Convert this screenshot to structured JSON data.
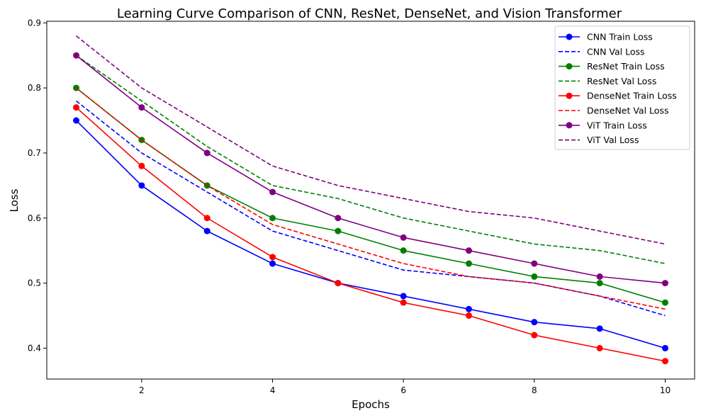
{
  "chart_data": {
    "type": "line",
    "title": "Learning Curve Comparison of CNN, ResNet, DenseNet, and Vision Transformer",
    "xlabel": "Epochs",
    "ylabel": "Loss",
    "x": [
      1,
      2,
      3,
      4,
      5,
      6,
      7,
      8,
      9,
      10
    ],
    "xlim": [
      0.55,
      10.45
    ],
    "ylim": [
      0.3525,
      0.9025
    ],
    "xticks": [
      2,
      4,
      6,
      8,
      10
    ],
    "xtick_labels": [
      "2",
      "4",
      "6",
      "8",
      "10"
    ],
    "yticks": [
      0.4,
      0.5,
      0.6,
      0.7,
      0.8,
      0.9
    ],
    "ytick_labels": [
      "0.4",
      "0.5",
      "0.6",
      "0.7",
      "0.8",
      "0.9"
    ],
    "grid": false,
    "legend_position": "top-right",
    "series": [
      {
        "name": "CNN Train Loss",
        "color": "#0000ff",
        "style": "solid-marker",
        "values": [
          0.75,
          0.65,
          0.58,
          0.53,
          0.5,
          0.48,
          0.46,
          0.44,
          0.43,
          0.4
        ]
      },
      {
        "name": "CNN Val Loss",
        "color": "#0000ff",
        "style": "dashed",
        "values": [
          0.78,
          0.7,
          0.64,
          0.58,
          0.55,
          0.52,
          0.51,
          0.5,
          0.48,
          0.45
        ]
      },
      {
        "name": "ResNet Train Loss",
        "color": "#008000",
        "style": "solid-marker",
        "values": [
          0.8,
          0.72,
          0.65,
          0.6,
          0.58,
          0.55,
          0.53,
          0.51,
          0.5,
          0.47
        ]
      },
      {
        "name": "ResNet Val Loss",
        "color": "#008000",
        "style": "dashed",
        "values": [
          0.85,
          0.78,
          0.71,
          0.65,
          0.63,
          0.6,
          0.58,
          0.56,
          0.55,
          0.53
        ]
      },
      {
        "name": "DenseNet Train Loss",
        "color": "#ff0000",
        "style": "solid-marker",
        "values": [
          0.77,
          0.68,
          0.6,
          0.54,
          0.5,
          0.47,
          0.45,
          0.42,
          0.4,
          0.38
        ]
      },
      {
        "name": "DenseNet Val Loss",
        "color": "#ff0000",
        "style": "dashed",
        "values": [
          0.8,
          0.72,
          0.65,
          0.59,
          0.56,
          0.53,
          0.51,
          0.5,
          0.48,
          0.46
        ]
      },
      {
        "name": "ViT Train Loss",
        "color": "#800080",
        "style": "solid-marker",
        "values": [
          0.85,
          0.77,
          0.7,
          0.64,
          0.6,
          0.57,
          0.55,
          0.53,
          0.51,
          0.5
        ]
      },
      {
        "name": "ViT Val Loss",
        "color": "#800080",
        "style": "dashed",
        "values": [
          0.88,
          0.8,
          0.74,
          0.68,
          0.65,
          0.63,
          0.61,
          0.6,
          0.58,
          0.56
        ]
      }
    ]
  }
}
